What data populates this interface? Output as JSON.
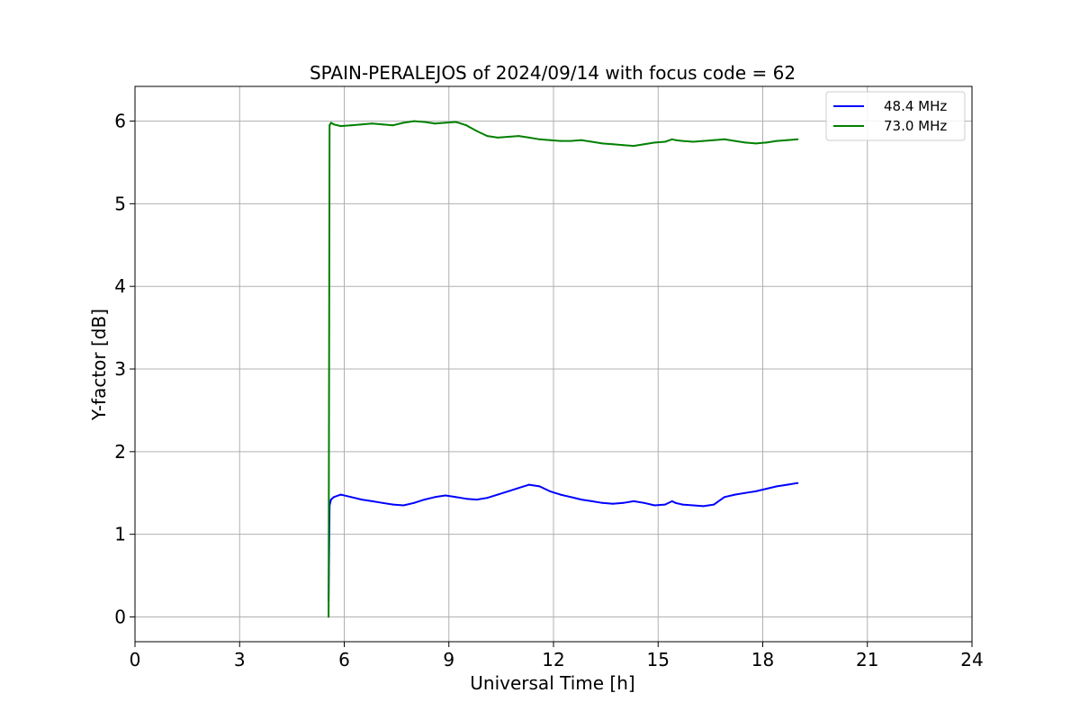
{
  "chart_data": {
    "type": "line",
    "title": "SPAIN-PERALEJOS of 2024/09/14 with focus code = 62",
    "xlabel": "Universal Time [h]",
    "ylabel": "Y-factor [dB]",
    "xlim": [
      0,
      24
    ],
    "ylim": [
      -0.3,
      6.42
    ],
    "xticks": [
      0,
      3,
      6,
      9,
      12,
      15,
      18,
      21,
      24
    ],
    "yticks": [
      0,
      1,
      2,
      3,
      4,
      5,
      6
    ],
    "grid": true,
    "legend_position": "top-right",
    "series": [
      {
        "name": "48.4 MHz",
        "color": "#0000ff",
        "x": [
          5.55,
          5.58,
          5.62,
          5.7,
          5.9,
          6.2,
          6.5,
          6.8,
          7.1,
          7.4,
          7.7,
          8.0,
          8.3,
          8.6,
          8.9,
          9.2,
          9.5,
          9.8,
          10.1,
          10.4,
          10.7,
          11.0,
          11.3,
          11.6,
          11.9,
          12.2,
          12.5,
          12.8,
          13.1,
          13.4,
          13.7,
          14.0,
          14.3,
          14.6,
          14.9,
          15.2,
          15.4,
          15.5,
          15.7,
          16.0,
          16.3,
          16.6,
          16.9,
          17.2,
          17.5,
          17.8,
          18.1,
          18.4,
          18.7,
          19.0
        ],
        "y": [
          0.2,
          1.35,
          1.42,
          1.45,
          1.48,
          1.45,
          1.42,
          1.4,
          1.38,
          1.36,
          1.35,
          1.38,
          1.42,
          1.45,
          1.47,
          1.45,
          1.43,
          1.42,
          1.44,
          1.48,
          1.52,
          1.56,
          1.6,
          1.58,
          1.52,
          1.48,
          1.45,
          1.42,
          1.4,
          1.38,
          1.37,
          1.38,
          1.4,
          1.38,
          1.35,
          1.36,
          1.4,
          1.38,
          1.36,
          1.35,
          1.34,
          1.36,
          1.45,
          1.48,
          1.5,
          1.52,
          1.55,
          1.58,
          1.6,
          1.62
        ]
      },
      {
        "name": "73.0 MHz",
        "color": "#008000",
        "x": [
          5.55,
          5.58,
          5.62,
          5.7,
          5.9,
          6.2,
          6.5,
          6.8,
          7.1,
          7.4,
          7.7,
          8.0,
          8.3,
          8.6,
          8.9,
          9.2,
          9.5,
          9.8,
          10.1,
          10.4,
          10.7,
          11.0,
          11.3,
          11.6,
          11.9,
          12.2,
          12.5,
          12.8,
          13.1,
          13.4,
          13.7,
          14.0,
          14.3,
          14.6,
          14.9,
          15.2,
          15.4,
          15.5,
          15.7,
          16.0,
          16.3,
          16.6,
          16.9,
          17.2,
          17.5,
          17.8,
          18.1,
          18.4,
          18.7,
          19.0
        ],
        "y": [
          0.0,
          5.95,
          5.98,
          5.96,
          5.94,
          5.95,
          5.96,
          5.97,
          5.96,
          5.95,
          5.98,
          6.0,
          5.99,
          5.97,
          5.98,
          5.99,
          5.95,
          5.88,
          5.82,
          5.8,
          5.81,
          5.82,
          5.8,
          5.78,
          5.77,
          5.76,
          5.76,
          5.77,
          5.75,
          5.73,
          5.72,
          5.71,
          5.7,
          5.72,
          5.74,
          5.75,
          5.78,
          5.77,
          5.76,
          5.75,
          5.76,
          5.77,
          5.78,
          5.76,
          5.74,
          5.73,
          5.74,
          5.76,
          5.77,
          5.78
        ]
      }
    ]
  }
}
